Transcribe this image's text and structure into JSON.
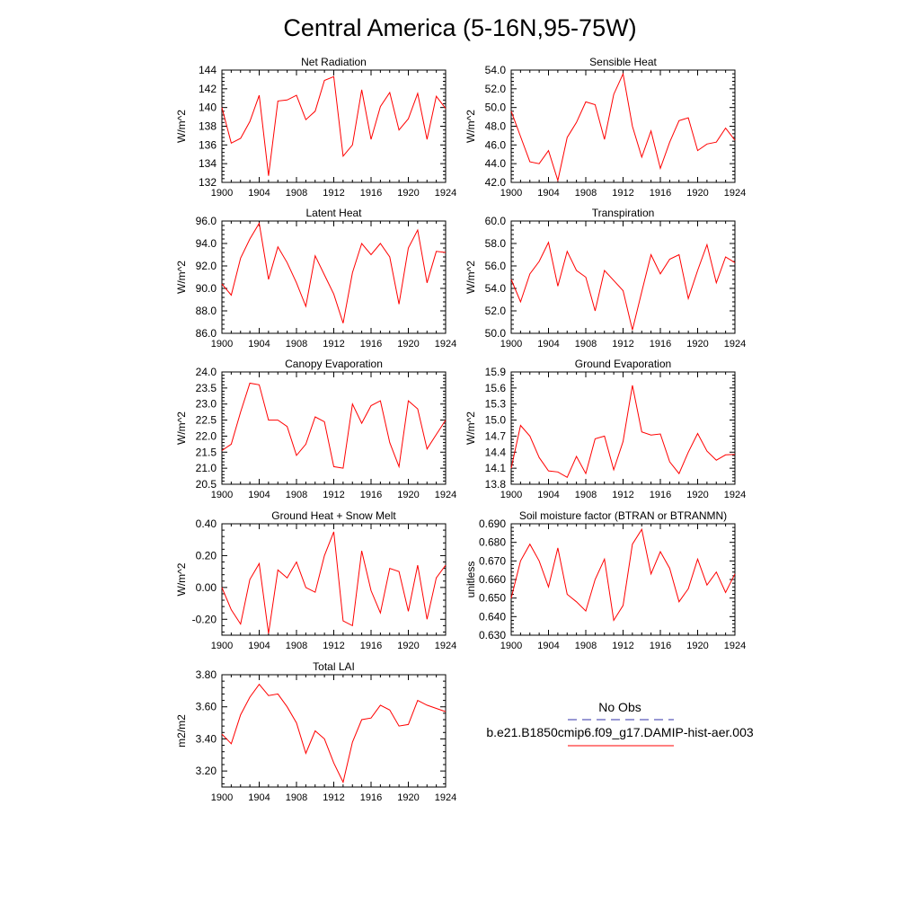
{
  "figure": {
    "title": "Central America (5-16N,95-75W)"
  },
  "legend": {
    "obs_label": "No Obs",
    "obs_color": "#3333aa",
    "model_label": "b.e21.B1850cmip6.f09_g17.DAMIP-hist-aer.003",
    "model_color": "#ff0000"
  },
  "chart_data": [
    {
      "type": "line",
      "title": "Net Radiation",
      "ylabel": "W/m^2",
      "xlim": [
        1900,
        1924
      ],
      "ylim": [
        132,
        144
      ],
      "yticks": [
        132,
        134,
        136,
        138,
        140,
        142,
        144
      ],
      "ydecimals": 0,
      "xticks": [
        1900,
        1904,
        1908,
        1912,
        1916,
        1920,
        1924
      ],
      "series": [
        {
          "color": "#ff0000",
          "x": [
            1900,
            1901,
            1902,
            1903,
            1904,
            1905,
            1906,
            1907,
            1908,
            1909,
            1910,
            1911,
            1912,
            1913,
            1914,
            1915,
            1916,
            1917,
            1918,
            1919,
            1920,
            1921,
            1922,
            1923,
            1924
          ],
          "values": [
            140.0,
            136.2,
            136.7,
            138.5,
            141.3,
            132.7,
            140.7,
            140.8,
            141.3,
            138.7,
            139.6,
            142.9,
            143.3,
            134.8,
            136.0,
            141.9,
            136.6,
            140.1,
            141.6,
            137.6,
            138.8,
            141.5,
            136.6,
            141.2,
            139.9
          ]
        }
      ]
    },
    {
      "type": "line",
      "title": "Sensible Heat",
      "ylabel": "W/m^2",
      "xlim": [
        1900,
        1924
      ],
      "ylim": [
        42,
        54
      ],
      "yticks": [
        42,
        44,
        46,
        48,
        50,
        52,
        54
      ],
      "ydecimals": 1,
      "xticks": [
        1900,
        1904,
        1908,
        1912,
        1916,
        1920,
        1924
      ],
      "series": [
        {
          "color": "#ff0000",
          "x": [
            1900,
            1901,
            1902,
            1903,
            1904,
            1905,
            1906,
            1907,
            1908,
            1909,
            1910,
            1911,
            1912,
            1913,
            1914,
            1915,
            1916,
            1917,
            1918,
            1919,
            1920,
            1921,
            1922,
            1923,
            1924
          ],
          "values": [
            49.6,
            46.9,
            44.2,
            44.0,
            45.4,
            42.2,
            46.8,
            48.4,
            50.6,
            50.3,
            46.6,
            51.4,
            53.6,
            48.0,
            44.7,
            47.5,
            43.5,
            46.3,
            48.6,
            48.9,
            45.4,
            46.1,
            46.3,
            47.8,
            46.5
          ]
        }
      ]
    },
    {
      "type": "line",
      "title": "Latent Heat",
      "ylabel": "W/m^2",
      "xlim": [
        1900,
        1924
      ],
      "ylim": [
        86,
        96
      ],
      "yticks": [
        86,
        88,
        90,
        92,
        94,
        96
      ],
      "ydecimals": 1,
      "xticks": [
        1900,
        1904,
        1908,
        1912,
        1916,
        1920,
        1924
      ],
      "series": [
        {
          "color": "#ff0000",
          "x": [
            1900,
            1901,
            1902,
            1903,
            1904,
            1905,
            1906,
            1907,
            1908,
            1909,
            1910,
            1911,
            1912,
            1913,
            1914,
            1915,
            1916,
            1917,
            1918,
            1919,
            1920,
            1921,
            1922,
            1923,
            1924
          ],
          "values": [
            90.4,
            89.4,
            92.7,
            94.4,
            95.8,
            90.8,
            93.7,
            92.3,
            90.5,
            88.4,
            92.9,
            91.2,
            89.5,
            86.9,
            91.4,
            94.0,
            93.0,
            94.0,
            92.8,
            88.6,
            93.6,
            95.2,
            90.5,
            93.3,
            93.2
          ]
        }
      ]
    },
    {
      "type": "line",
      "title": "Transpiration",
      "ylabel": "W/m^2",
      "xlim": [
        1900,
        1924
      ],
      "ylim": [
        50,
        60
      ],
      "yticks": [
        50,
        52,
        54,
        56,
        58,
        60
      ],
      "ydecimals": 1,
      "xticks": [
        1900,
        1904,
        1908,
        1912,
        1916,
        1920,
        1924
      ],
      "series": [
        {
          "color": "#ff0000",
          "x": [
            1900,
            1901,
            1902,
            1903,
            1904,
            1905,
            1906,
            1907,
            1908,
            1909,
            1910,
            1911,
            1912,
            1913,
            1914,
            1915,
            1916,
            1917,
            1918,
            1919,
            1920,
            1921,
            1922,
            1923,
            1924
          ],
          "values": [
            54.8,
            52.8,
            55.3,
            56.4,
            58.1,
            54.2,
            57.3,
            55.6,
            55.0,
            52.0,
            55.6,
            54.7,
            53.8,
            50.3,
            53.7,
            57.0,
            55.3,
            56.6,
            57.0,
            53.1,
            55.6,
            57.9,
            54.5,
            56.8,
            56.3
          ]
        }
      ]
    },
    {
      "type": "line",
      "title": "Canopy Evaporation",
      "ylabel": "W/m^2",
      "xlim": [
        1900,
        1924
      ],
      "ylim": [
        20.5,
        24.0
      ],
      "yticks": [
        20.5,
        21.0,
        21.5,
        22.0,
        22.5,
        23.0,
        23.5,
        24.0
      ],
      "ydecimals": 1,
      "xticks": [
        1900,
        1904,
        1908,
        1912,
        1916,
        1920,
        1924
      ],
      "series": [
        {
          "color": "#ff0000",
          "x": [
            1900,
            1901,
            1902,
            1903,
            1904,
            1905,
            1906,
            1907,
            1908,
            1909,
            1910,
            1911,
            1912,
            1913,
            1914,
            1915,
            1916,
            1917,
            1918,
            1919,
            1920,
            1921,
            1922,
            1923,
            1924
          ],
          "values": [
            21.55,
            21.75,
            22.75,
            23.65,
            23.6,
            22.5,
            22.5,
            22.3,
            21.4,
            21.75,
            22.6,
            22.45,
            21.05,
            21.0,
            23.0,
            22.4,
            22.95,
            23.1,
            21.8,
            21.05,
            23.1,
            22.85,
            21.6,
            22.05,
            22.5
          ]
        }
      ]
    },
    {
      "type": "line",
      "title": "Ground Evaporation",
      "ylabel": "W/m^2",
      "xlim": [
        1900,
        1924
      ],
      "ylim": [
        13.8,
        15.9
      ],
      "yticks": [
        13.8,
        14.1,
        14.4,
        14.7,
        15.0,
        15.3,
        15.6,
        15.9
      ],
      "ydecimals": 1,
      "xticks": [
        1900,
        1904,
        1908,
        1912,
        1916,
        1920,
        1924
      ],
      "series": [
        {
          "color": "#ff0000",
          "x": [
            1900,
            1901,
            1902,
            1903,
            1904,
            1905,
            1906,
            1907,
            1908,
            1909,
            1910,
            1911,
            1912,
            1913,
            1914,
            1915,
            1916,
            1917,
            1918,
            1919,
            1920,
            1921,
            1922,
            1923,
            1924
          ],
          "values": [
            14.1,
            14.9,
            14.7,
            14.3,
            14.05,
            14.03,
            13.93,
            14.32,
            14.0,
            14.65,
            14.7,
            14.07,
            14.6,
            15.65,
            14.78,
            14.72,
            14.74,
            14.22,
            14.0,
            14.4,
            14.75,
            14.42,
            14.25,
            14.35,
            14.36
          ]
        }
      ]
    },
    {
      "type": "line",
      "title": "Ground Heat + Snow Melt",
      "ylabel": "W/m^2",
      "xlim": [
        1900,
        1924
      ],
      "ylim": [
        -0.3,
        0.4
      ],
      "yticks": [
        -0.2,
        0.0,
        0.2,
        0.4
      ],
      "ydecimals": 2,
      "xticks": [
        1900,
        1904,
        1908,
        1912,
        1916,
        1920,
        1924
      ],
      "series": [
        {
          "color": "#ff0000",
          "x": [
            1900,
            1901,
            1902,
            1903,
            1904,
            1905,
            1906,
            1907,
            1908,
            1909,
            1910,
            1911,
            1912,
            1913,
            1914,
            1915,
            1916,
            1917,
            1918,
            1919,
            1920,
            1921,
            1922,
            1923,
            1924
          ],
          "values": [
            0.0,
            -0.14,
            -0.23,
            0.05,
            0.15,
            -0.29,
            0.11,
            0.06,
            0.16,
            0.0,
            -0.03,
            0.2,
            0.35,
            -0.21,
            -0.24,
            0.23,
            -0.02,
            -0.16,
            0.12,
            0.1,
            -0.15,
            0.14,
            -0.2,
            0.06,
            0.14
          ]
        }
      ]
    },
    {
      "type": "line",
      "title": "Soil moisture factor (BTRAN or BTRANMN)",
      "ylabel": "unitless",
      "xlim": [
        1900,
        1924
      ],
      "ylim": [
        0.63,
        0.69
      ],
      "yticks": [
        0.63,
        0.64,
        0.65,
        0.66,
        0.67,
        0.68,
        0.69
      ],
      "ydecimals": 3,
      "xticks": [
        1900,
        1904,
        1908,
        1912,
        1916,
        1920,
        1924
      ],
      "series": [
        {
          "color": "#ff0000",
          "x": [
            1900,
            1901,
            1902,
            1903,
            1904,
            1905,
            1906,
            1907,
            1908,
            1909,
            1910,
            1911,
            1912,
            1913,
            1914,
            1915,
            1916,
            1917,
            1918,
            1919,
            1920,
            1921,
            1922,
            1923,
            1924
          ],
          "values": [
            0.65,
            0.67,
            0.679,
            0.67,
            0.656,
            0.677,
            0.652,
            0.648,
            0.643,
            0.66,
            0.671,
            0.638,
            0.646,
            0.679,
            0.687,
            0.663,
            0.675,
            0.666,
            0.648,
            0.655,
            0.671,
            0.657,
            0.664,
            0.653,
            0.663
          ]
        }
      ]
    },
    {
      "type": "line",
      "title": "Total LAI",
      "ylabel": "m2/m2",
      "xlim": [
        1900,
        1924
      ],
      "ylim": [
        3.1,
        3.8
      ],
      "yticks": [
        3.2,
        3.4,
        3.6,
        3.8
      ],
      "ydecimals": 2,
      "xticks": [
        1900,
        1904,
        1908,
        1912,
        1916,
        1920,
        1924
      ],
      "series": [
        {
          "color": "#ff0000",
          "x": [
            1900,
            1901,
            1902,
            1903,
            1904,
            1905,
            1906,
            1907,
            1908,
            1909,
            1910,
            1911,
            1912,
            1913,
            1914,
            1915,
            1916,
            1917,
            1918,
            1919,
            1920,
            1921,
            1922,
            1923,
            1924
          ],
          "values": [
            3.43,
            3.37,
            3.55,
            3.66,
            3.74,
            3.67,
            3.68,
            3.6,
            3.5,
            3.31,
            3.45,
            3.4,
            3.25,
            3.13,
            3.38,
            3.52,
            3.53,
            3.61,
            3.58,
            3.48,
            3.49,
            3.64,
            3.61,
            3.59,
            3.57
          ]
        }
      ]
    }
  ]
}
